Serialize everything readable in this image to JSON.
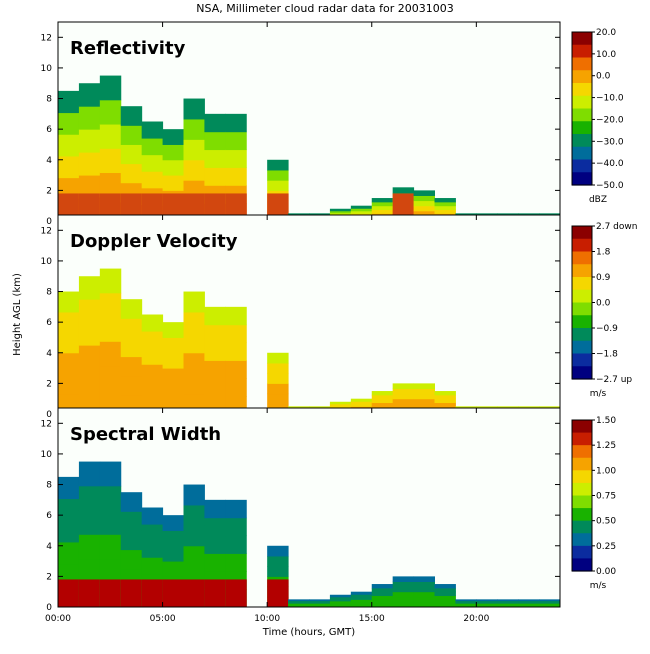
{
  "page_title": "NSA, Millimeter cloud radar data for 20031003",
  "colors": {
    "background": "#ffffff",
    "axes": "#000000"
  },
  "chart_data": [
    {
      "type": "heatmap",
      "title": "Reflectivity",
      "ylabel": "",
      "xlabel": "",
      "xlim": [
        0,
        24
      ],
      "ylim": [
        0,
        13
      ],
      "y_ticks": [
        "0",
        "2",
        "4",
        "6",
        "8",
        "10",
        "12"
      ],
      "colorbar": {
        "ticks": [
          "20.0",
          "10.0",
          "0.0",
          "−10.0",
          "−20.0",
          "−30.0",
          "−40.0",
          "−50.0"
        ],
        "unit": "dBZ",
        "colors": [
          "#8b0000",
          "#c81e00",
          "#ef6f00",
          "#f6a300",
          "#f5d700",
          "#ccee00",
          "#7fdd00",
          "#19b200",
          "#008a5a",
          "#006d9b",
          "#0b2c9f",
          "#000080"
        ]
      },
      "series": [
        {
          "x": [
            0.5,
            1.5,
            2.5,
            3.5,
            4.5,
            5.5,
            6.5,
            7.5,
            8.5,
            9.5,
            10.5,
            11.5,
            12.5,
            13.5,
            14.5,
            15.5,
            16.5,
            17.5,
            18.5,
            19.5,
            20.5,
            21.5,
            22.5,
            23.5
          ],
          "cloud_top_km": [
            8.5,
            9.0,
            9.5,
            7.5,
            6.5,
            6.0,
            8.0,
            7.0,
            7.0,
            0,
            4.0,
            0.5,
            0.5,
            0.8,
            1.0,
            1.5,
            2.2,
            2.0,
            1.5,
            0.5,
            0.5,
            0.5,
            0.5,
            0.5
          ]
        }
      ]
    },
    {
      "type": "heatmap",
      "title": "Doppler Velocity",
      "ylabel": "Height AGL (km)",
      "xlabel": "",
      "xlim": [
        0,
        24
      ],
      "ylim": [
        0,
        13
      ],
      "y_ticks": [
        "0",
        "2",
        "4",
        "6",
        "8",
        "10",
        "12"
      ],
      "colorbar": {
        "ticks": [
          "2.7 down",
          "1.8",
          "0.9",
          "0.0",
          "−0.9",
          "−1.8",
          "−2.7 up"
        ],
        "unit": "m/s",
        "colors": [
          "#8b0000",
          "#c81e00",
          "#ef6f00",
          "#f6a300",
          "#f5d700",
          "#ccee00",
          "#7fdd00",
          "#19b200",
          "#008a5a",
          "#006d9b",
          "#0b2c9f",
          "#000080"
        ]
      },
      "series": [
        {
          "x": [
            0.5,
            1.5,
            2.5,
            3.5,
            4.5,
            5.5,
            6.5,
            7.5,
            8.5,
            9.5,
            10.5,
            11.5,
            12.5,
            13.5,
            14.5,
            15.5,
            16.5,
            17.5,
            18.5,
            19.5,
            20.5,
            21.5,
            22.5,
            23.5
          ],
          "cloud_top_km": [
            8.0,
            9.0,
            9.5,
            7.5,
            6.5,
            6.0,
            8.0,
            7.0,
            7.0,
            0,
            4.0,
            0.5,
            0.5,
            0.8,
            1.0,
            1.5,
            2.0,
            2.0,
            1.5,
            0.5,
            0.5,
            0.5,
            0.5,
            0.5
          ]
        }
      ]
    },
    {
      "type": "heatmap",
      "title": "Spectral Width",
      "ylabel": "",
      "xlabel": "Time (hours, GMT)",
      "xlim": [
        0,
        24
      ],
      "ylim": [
        0,
        13
      ],
      "x_ticks": [
        "00:00",
        "05:00",
        "10:00",
        "15:00",
        "20:00"
      ],
      "y_ticks": [
        "0",
        "2",
        "4",
        "6",
        "8",
        "10",
        "12"
      ],
      "colorbar": {
        "ticks": [
          "1.50",
          "1.25",
          "1.00",
          "0.75",
          "0.50",
          "0.25",
          "0.00"
        ],
        "unit": "m/s",
        "colors": [
          "#8b0000",
          "#c81e00",
          "#ef6f00",
          "#f6a300",
          "#f5d700",
          "#ccee00",
          "#7fdd00",
          "#19b200",
          "#008a5a",
          "#006d9b",
          "#0b2c9f",
          "#000080"
        ]
      },
      "series": [
        {
          "x": [
            0.5,
            1.5,
            2.5,
            3.5,
            4.5,
            5.5,
            6.5,
            7.5,
            8.5,
            9.5,
            10.5,
            11.5,
            12.5,
            13.5,
            14.5,
            15.5,
            16.5,
            17.5,
            18.5,
            19.5,
            20.5,
            21.5,
            22.5,
            23.5
          ],
          "cloud_top_km": [
            8.5,
            9.5,
            9.5,
            7.5,
            6.5,
            6.0,
            8.0,
            7.0,
            7.0,
            0,
            4.0,
            0.5,
            0.5,
            0.8,
            1.0,
            1.5,
            2.0,
            2.0,
            1.5,
            0.5,
            0.5,
            0.5,
            0.5,
            0.5
          ]
        }
      ]
    }
  ]
}
